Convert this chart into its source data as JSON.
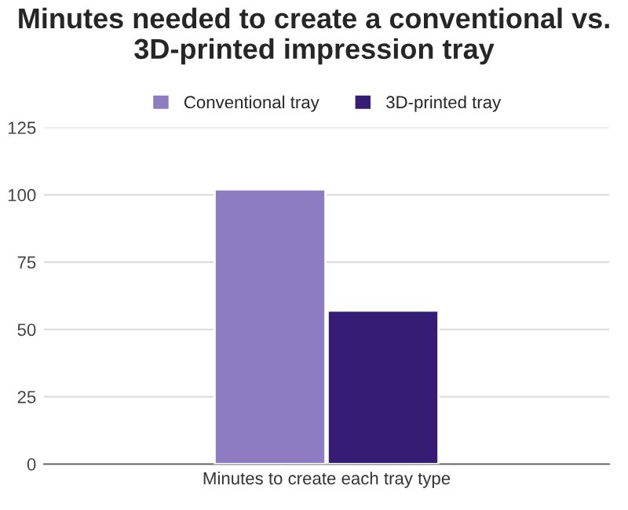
{
  "chart_data": {
    "type": "bar",
    "title": "Minutes needed to create a conventional vs. 3D-printed impression tray",
    "categories": [
      "Minutes to create each tray type"
    ],
    "series": [
      {
        "name": "Conventional tray",
        "color": "#8e7cc3",
        "values": [
          102
        ]
      },
      {
        "name": "3D-printed tray",
        "color": "#351c75",
        "values": [
          57
        ]
      }
    ],
    "ylim": [
      0,
      125
    ],
    "yticks": [
      0,
      25,
      50,
      75,
      100,
      125
    ],
    "grid": "y",
    "legend": "top"
  }
}
